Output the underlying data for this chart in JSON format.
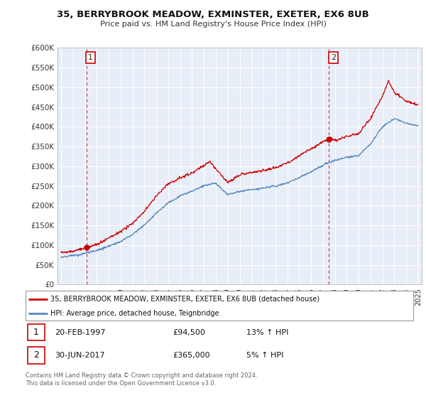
{
  "title": "35, BERRYBROOK MEADOW, EXMINSTER, EXETER, EX6 8UB",
  "subtitle": "Price paid vs. HM Land Registry's House Price Index (HPI)",
  "ylim": [
    0,
    600000
  ],
  "yticks": [
    0,
    50000,
    100000,
    150000,
    200000,
    250000,
    300000,
    350000,
    400000,
    450000,
    500000,
    550000,
    600000
  ],
  "legend_entry1": "35, BERRYBROOK MEADOW, EXMINSTER, EXETER, EX6 8UB (detached house)",
  "legend_entry2": "HPI: Average price, detached house, Teignbridge",
  "sale1_date": "20-FEB-1997",
  "sale1_price": "£94,500",
  "sale1_hpi": "13% ↑ HPI",
  "sale2_date": "30-JUN-2017",
  "sale2_price": "£365,000",
  "sale2_hpi": "5% ↑ HPI",
  "footer": "Contains HM Land Registry data © Crown copyright and database right 2024.\nThis data is licensed under the Open Government Licence v3.0.",
  "line_color_red": "#cc0000",
  "line_color_blue": "#5588bb",
  "chart_bg": "#e8eef8",
  "background_color": "#ffffff",
  "grid_color": "#ffffff",
  "sale1_year": 1997.13,
  "sale2_year": 2017.5,
  "sale1_value": 94500,
  "sale2_value": 365000
}
